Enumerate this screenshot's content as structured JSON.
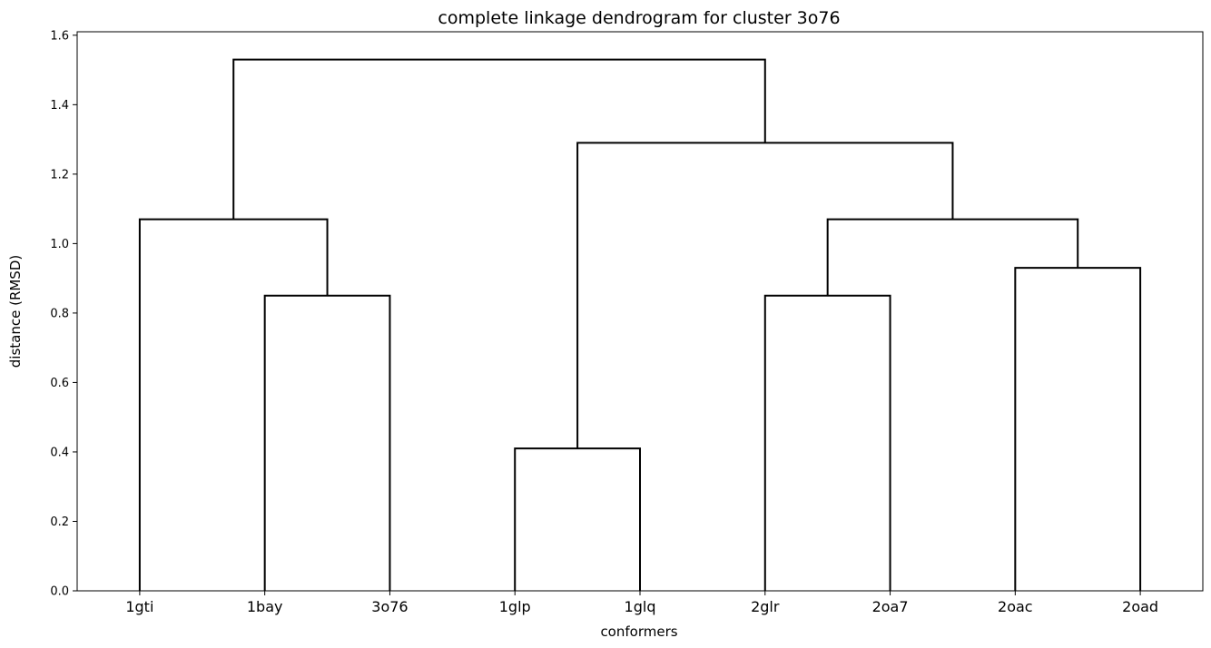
{
  "chart_data": {
    "type": "dendrogram",
    "title": "complete linkage dendrogram for cluster 3o76",
    "xlabel": "conformers",
    "ylabel": "distance (RMSD)",
    "ylim": [
      0,
      1.61
    ],
    "yticks": [
      0.0,
      0.2,
      0.4,
      0.6,
      0.8,
      1.0,
      1.2,
      1.4,
      1.6
    ],
    "ytick_labels": [
      "0.0",
      "0.2",
      "0.4",
      "0.6",
      "0.8",
      "1.0",
      "1.2",
      "1.4",
      "1.6"
    ],
    "leaves": [
      "1gti",
      "1bay",
      "3o76",
      "1glp",
      "1glq",
      "2glr",
      "2oa7",
      "2oac",
      "2oad"
    ],
    "merges": [
      {
        "children": [
          "1glp",
          "1glq"
        ],
        "height": 0.41
      },
      {
        "children": [
          "1bay",
          "3o76"
        ],
        "height": 0.85
      },
      {
        "children": [
          "2glr",
          "2oa7"
        ],
        "height": 0.85
      },
      {
        "children": [
          "2oac",
          "2oad"
        ],
        "height": 0.93
      },
      {
        "children": [
          "1gti",
          "1bay+3o76"
        ],
        "height": 1.07
      },
      {
        "children": [
          "2glr+2oa7",
          "2oac+2oad"
        ],
        "height": 1.07
      },
      {
        "children": [
          "1glp+1glq",
          "2glr+2oa7+2oac+2oad"
        ],
        "height": 1.29
      },
      {
        "children": [
          "1gti+1bay+3o76",
          "1glp+1glq+2glr+2oa7+2oac+2oad"
        ],
        "height": 1.53
      }
    ],
    "link_color": "#000000",
    "grid": false
  }
}
